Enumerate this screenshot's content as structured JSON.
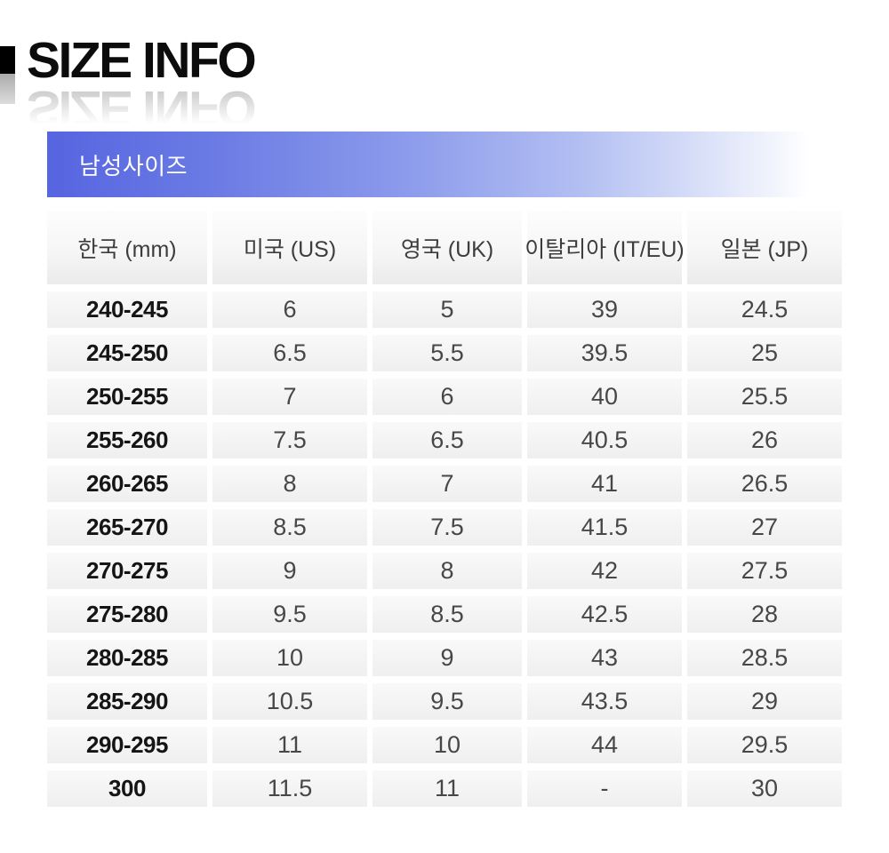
{
  "title": "SIZE INFO",
  "section": {
    "label": "남성사이즈"
  },
  "table": {
    "headers": [
      "한국 (mm)",
      "미국 (US)",
      "영국 (UK)",
      "이탈리아 (IT/EU)",
      "일본 (JP)"
    ],
    "rows": [
      [
        "240-245",
        "6",
        "5",
        "39",
        "24.5"
      ],
      [
        "245-250",
        "6.5",
        "5.5",
        "39.5",
        "25"
      ],
      [
        "250-255",
        "7",
        "6",
        "40",
        "25.5"
      ],
      [
        "255-260",
        "7.5",
        "6.5",
        "40.5",
        "26"
      ],
      [
        "260-265",
        "8",
        "7",
        "41",
        "26.5"
      ],
      [
        "265-270",
        "8.5",
        "7.5",
        "41.5",
        "27"
      ],
      [
        "270-275",
        "9",
        "8",
        "42",
        "27.5"
      ],
      [
        "275-280",
        "9.5",
        "8.5",
        "42.5",
        "28"
      ],
      [
        "280-285",
        "10",
        "9",
        "43",
        "28.5"
      ],
      [
        "285-290",
        "10.5",
        "9.5",
        "43.5",
        "29"
      ],
      [
        "290-295",
        "11",
        "10",
        "44",
        "29.5"
      ],
      [
        "300",
        "11.5",
        "11",
        "-",
        "30"
      ]
    ]
  },
  "colors": {
    "bar_gradient_start": "#5665e0",
    "bar_gradient_end": "#ffffff",
    "bar_text": "#ffffff",
    "title_text": "#0c0c0c",
    "row_background": "#f2f2f2"
  }
}
